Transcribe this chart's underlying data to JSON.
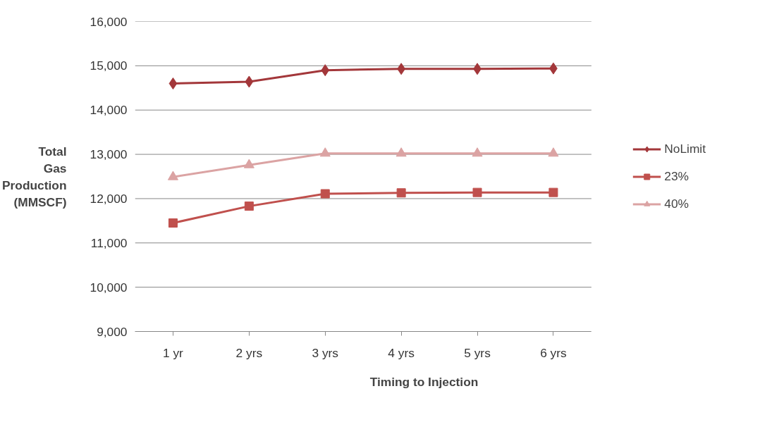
{
  "chart_data": {
    "type": "line",
    "xlabel": "Timing to Injection",
    "ylabel": "Total Gas Production (MMSCF)",
    "categories": [
      "1 yr",
      "2 yrs",
      "3 yrs",
      "4 yrs",
      "5 yrs",
      "6 yrs"
    ],
    "series": [
      {
        "name": "NoLimit",
        "color": "#a3373a",
        "marker": "diamond",
        "values": [
          14600,
          14640,
          14900,
          14930,
          14930,
          14940
        ]
      },
      {
        "name": "23%",
        "color": "#c0504d",
        "marker": "square",
        "values": [
          11450,
          11830,
          12110,
          12130,
          12140,
          12140
        ]
      },
      {
        "name": "40%",
        "color": "#dba3a3",
        "marker": "triangle",
        "values": [
          12490,
          12760,
          13020,
          13020,
          13020,
          13020
        ]
      }
    ],
    "ylim": [
      9000,
      16000
    ],
    "yticks": [
      {
        "value": 9000,
        "label": "9,000"
      },
      {
        "value": 10000,
        "label": "10,000"
      },
      {
        "value": 11000,
        "label": "11,000"
      },
      {
        "value": 12000,
        "label": "12,000"
      },
      {
        "value": 13000,
        "label": "13,000"
      },
      {
        "value": 14000,
        "label": "14,000"
      },
      {
        "value": 15000,
        "label": "15,000"
      },
      {
        "value": 16000,
        "label": "16,000"
      }
    ],
    "grid": "y",
    "legend": "right",
    "line_style": "solid"
  }
}
